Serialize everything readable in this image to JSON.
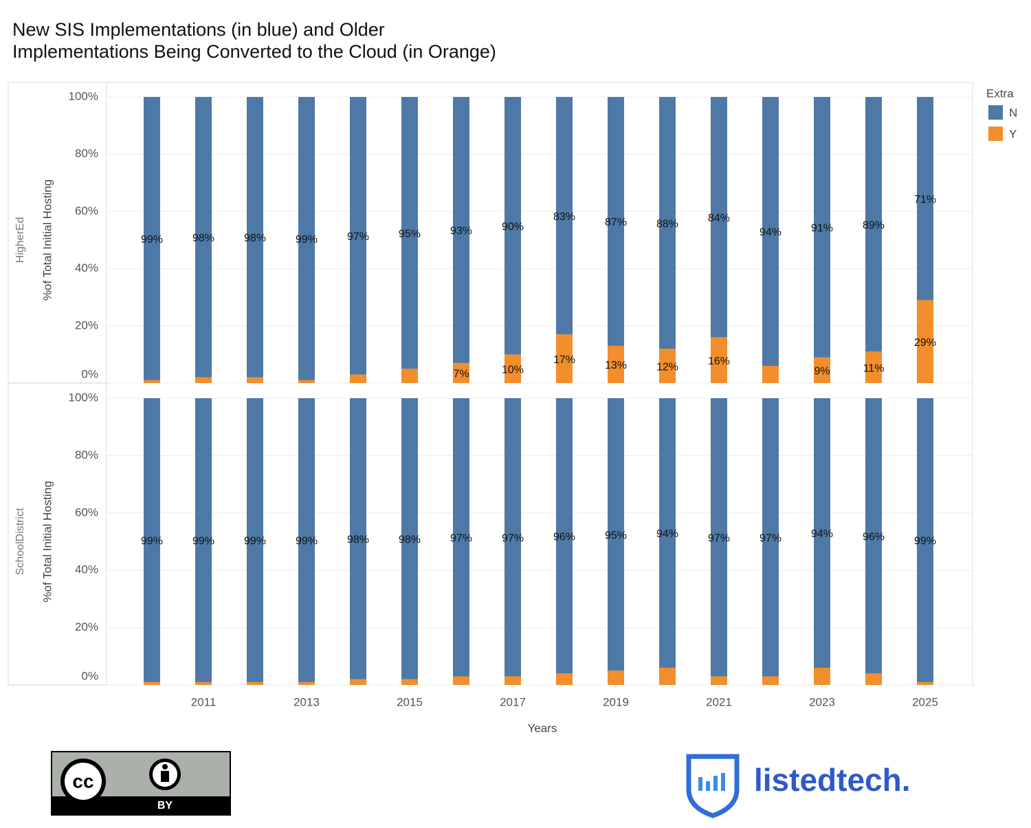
{
  "chart_data": {
    "type": "bar",
    "stacked": true,
    "title": [
      "New SIS Implementations (in blue) and Older",
      "Implementations Being Converted to the Cloud (in Orange)"
    ],
    "x_label": "Years",
    "y_label": "%of Total Initial Hosting",
    "legend_title": "Extra",
    "legend_position": "right",
    "x": [
      2010,
      2011,
      2012,
      2013,
      2014,
      2015,
      2016,
      2017,
      2018,
      2019,
      2020,
      2021,
      2022,
      2023,
      2024,
      2025
    ],
    "xlim": [
      2009.12,
      2025.92
    ],
    "xticks": [
      2011,
      2013,
      2015,
      2017,
      2019,
      2021,
      2023,
      2025
    ],
    "ylim": [
      0,
      100
    ],
    "yticks": [
      {
        "value": 0,
        "label": "0%"
      },
      {
        "value": 20,
        "label": "20%"
      },
      {
        "value": 40,
        "label": "40%"
      },
      {
        "value": 60,
        "label": "60%"
      },
      {
        "value": 80,
        "label": "80%"
      },
      {
        "value": 100,
        "label": "100%"
      }
    ],
    "grid": true,
    "panels": [
      {
        "name": "HigherEd",
        "series": [
          {
            "name": "N",
            "color": "#4e79a7",
            "values": [
              99,
              98,
              98,
              99,
              97,
              95,
              93,
              90,
              83,
              87,
              88,
              84,
              94,
              91,
              89,
              71
            ],
            "value_labels": [
              "99%",
              "98%",
              "98%",
              "99%",
              "97%",
              "95%",
              "93%",
              "90%",
              "83%",
              "87%",
              "88%",
              "84%",
              "94%",
              "91%",
              "89%",
              "71%"
            ]
          },
          {
            "name": "Y",
            "color": "#f28e2b",
            "values": [
              1,
              2,
              2,
              1,
              3,
              5,
              7,
              10,
              17,
              13,
              12,
              16,
              6,
              9,
              11,
              29
            ],
            "value_labels": [
              null,
              null,
              null,
              null,
              null,
              null,
              "7%",
              "10%",
              "17%",
              "13%",
              "12%",
              "16%",
              null,
              "9%",
              "11%",
              "29%"
            ]
          }
        ]
      },
      {
        "name": "SchoolDistrict",
        "series": [
          {
            "name": "N",
            "color": "#4e79a7",
            "values": [
              99,
              99,
              99,
              99,
              98,
              98,
              97,
              97,
              96,
              95,
              94,
              97,
              97,
              94,
              96,
              99
            ],
            "value_labels": [
              "99%",
              "99%",
              "99%",
              "99%",
              "98%",
              "98%",
              "97%",
              "97%",
              "96%",
              "95%",
              "94%",
              "97%",
              "97%",
              "94%",
              "96%",
              "99%"
            ]
          },
          {
            "name": "Y",
            "color": "#f28e2b",
            "values": [
              1,
              1,
              1,
              1,
              2,
              2,
              3,
              3,
              4,
              5,
              6,
              3,
              3,
              6,
              4,
              1
            ]
          }
        ]
      }
    ]
  },
  "footer": {
    "license_icon": "cc",
    "license_badge": "BY",
    "logo": "listedtech."
  }
}
